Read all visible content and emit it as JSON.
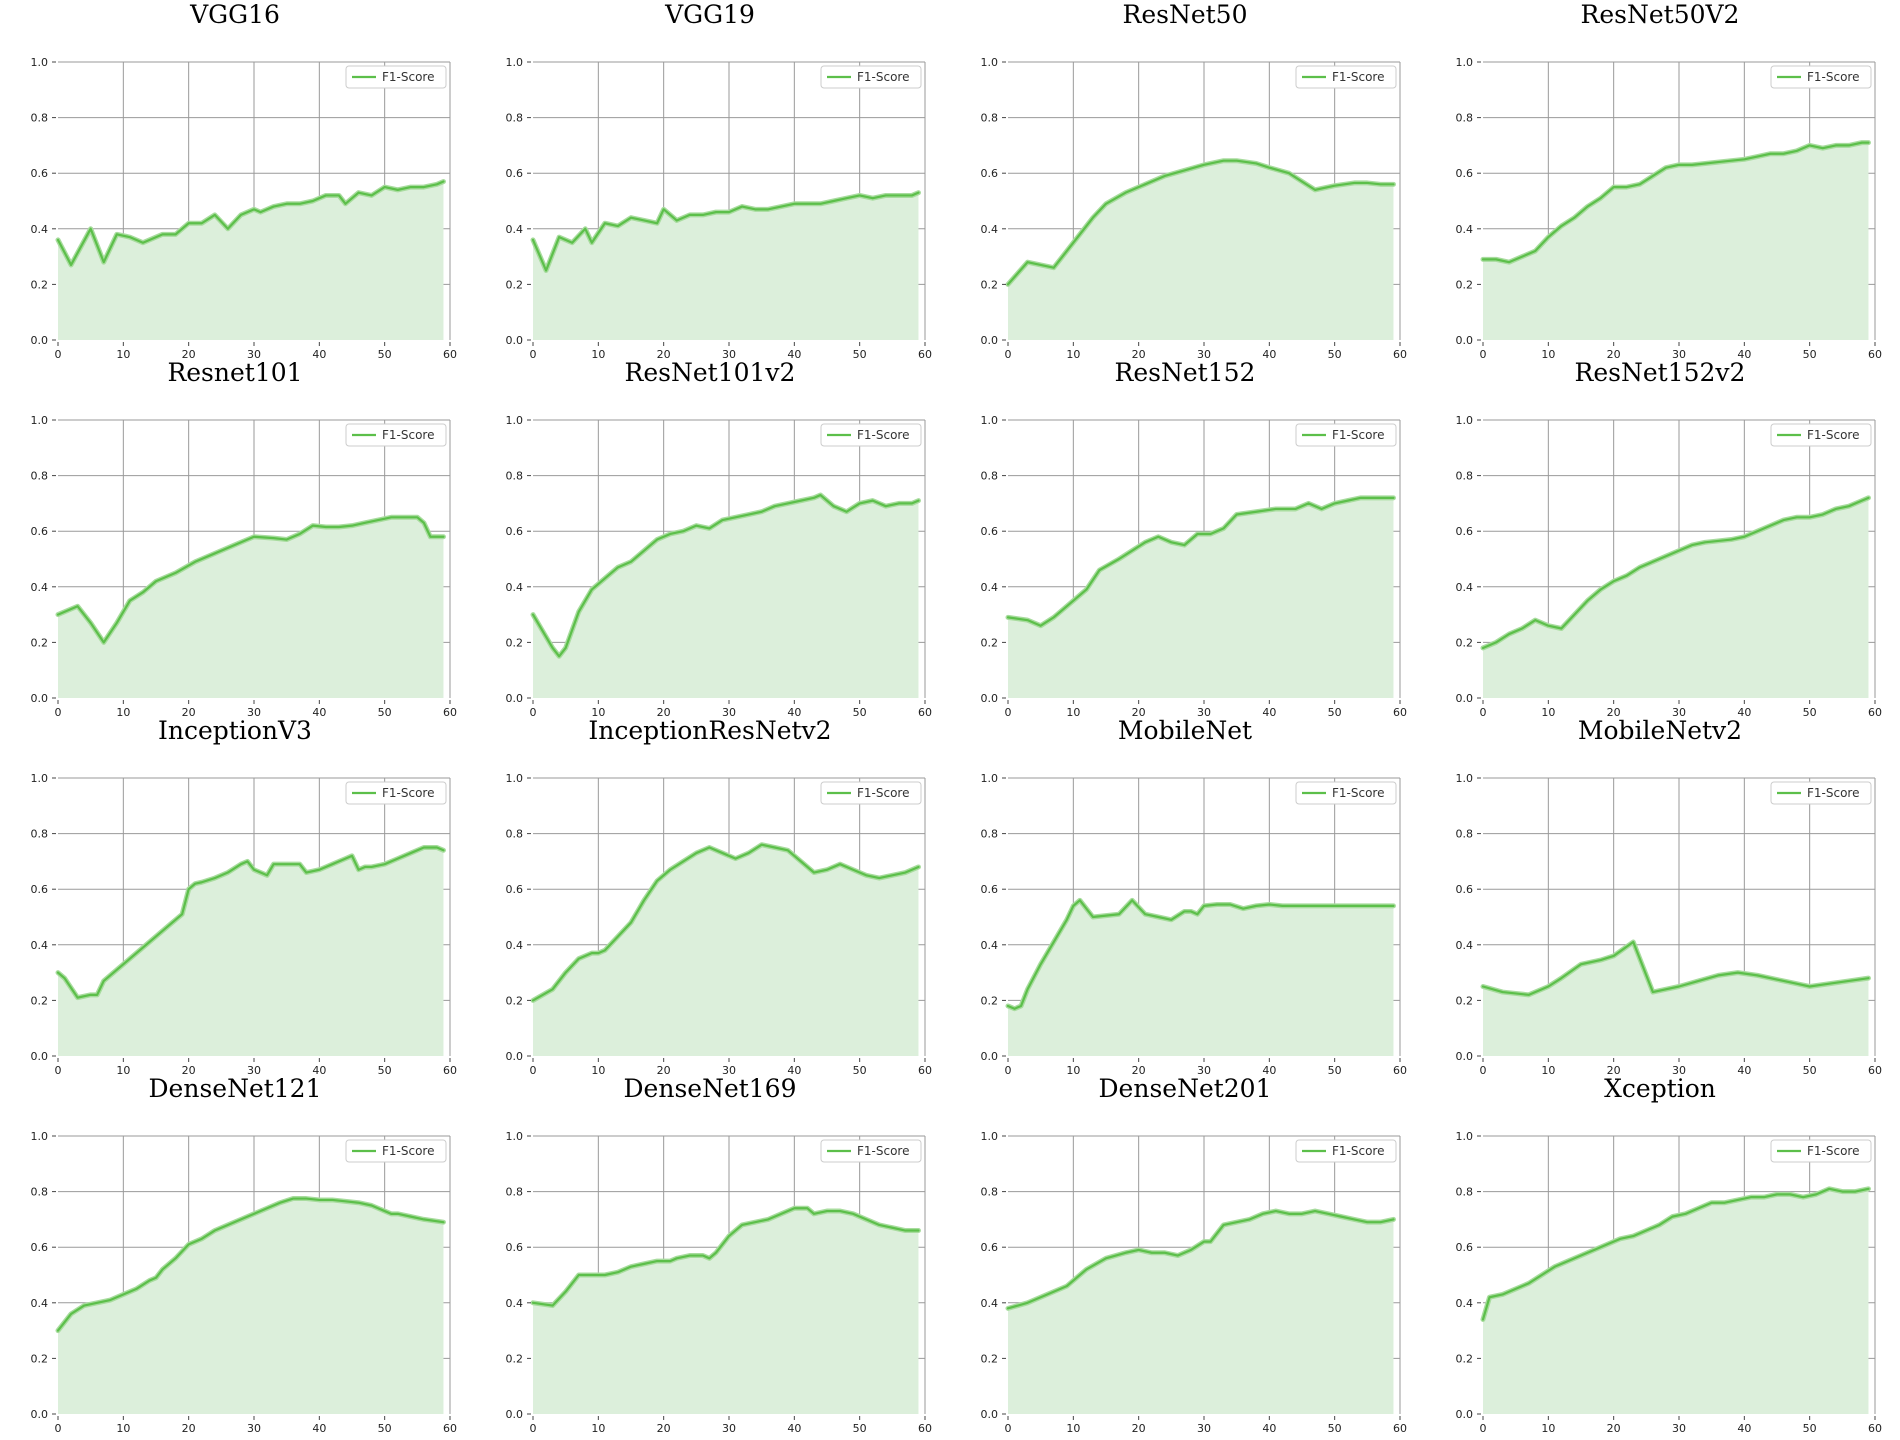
{
  "series_color": "#5cbf4a",
  "fill_color": "#dcefdb",
  "chart_data": [
    {
      "type": "area",
      "title": "VGG16",
      "legend": "F1-Score",
      "legend_loc": "top-right",
      "xlim": [
        0,
        60
      ],
      "ylim": [
        0,
        1
      ],
      "grid": true,
      "x": [
        0,
        2,
        5,
        7,
        9,
        11,
        13,
        16,
        18,
        20,
        22,
        24,
        26,
        28,
        30,
        31,
        33,
        35,
        37,
        39,
        41,
        43,
        44,
        46,
        48,
        50,
        52,
        54,
        56,
        58,
        59
      ],
      "y": [
        0.36,
        0.27,
        0.4,
        0.28,
        0.38,
        0.37,
        0.35,
        0.38,
        0.38,
        0.42,
        0.42,
        0.45,
        0.4,
        0.45,
        0.47,
        0.46,
        0.48,
        0.49,
        0.49,
        0.5,
        0.52,
        0.52,
        0.49,
        0.53,
        0.52,
        0.55,
        0.54,
        0.55,
        0.55,
        0.56,
        0.57
      ]
    },
    {
      "type": "area",
      "title": "VGG19",
      "legend": "F1-Score",
      "legend_loc": "top-right",
      "xlim": [
        0,
        60
      ],
      "ylim": [
        0,
        1
      ],
      "grid": true,
      "x": [
        0,
        2,
        4,
        6,
        8,
        9,
        11,
        13,
        15,
        17,
        19,
        20,
        22,
        24,
        26,
        28,
        30,
        32,
        34,
        36,
        38,
        40,
        42,
        44,
        46,
        48,
        50,
        52,
        54,
        56,
        58,
        59
      ],
      "y": [
        0.36,
        0.25,
        0.37,
        0.35,
        0.4,
        0.35,
        0.42,
        0.41,
        0.44,
        0.43,
        0.42,
        0.47,
        0.43,
        0.45,
        0.45,
        0.46,
        0.46,
        0.48,
        0.47,
        0.47,
        0.48,
        0.49,
        0.49,
        0.49,
        0.5,
        0.51,
        0.52,
        0.51,
        0.52,
        0.52,
        0.52,
        0.53
      ]
    },
    {
      "type": "area",
      "title": "ResNet50",
      "legend": "F1-Score",
      "legend_loc": "top-right",
      "xlim": [
        0,
        60
      ],
      "ylim": [
        0,
        1
      ],
      "grid": true,
      "x": [
        0,
        3,
        5,
        7,
        10,
        13,
        15,
        18,
        21,
        24,
        27,
        30,
        33,
        35,
        38,
        40,
        43,
        45,
        47,
        50,
        53,
        55,
        57,
        59
      ],
      "y": [
        0.2,
        0.28,
        0.27,
        0.26,
        0.35,
        0.44,
        0.49,
        0.53,
        0.56,
        0.59,
        0.61,
        0.63,
        0.645,
        0.645,
        0.635,
        0.62,
        0.6,
        0.57,
        0.54,
        0.555,
        0.565,
        0.565,
        0.56,
        0.56
      ]
    },
    {
      "type": "area",
      "title": "ResNet50V2",
      "legend": "F1-Score",
      "legend_loc": "top-right",
      "xlim": [
        0,
        60
      ],
      "ylim": [
        0,
        1
      ],
      "grid": true,
      "x": [
        0,
        2,
        4,
        6,
        8,
        10,
        12,
        14,
        16,
        18,
        20,
        22,
        24,
        26,
        28,
        30,
        32,
        34,
        36,
        38,
        40,
        42,
        44,
        46,
        48,
        50,
        52,
        54,
        56,
        58,
        59
      ],
      "y": [
        0.29,
        0.29,
        0.28,
        0.3,
        0.32,
        0.37,
        0.41,
        0.44,
        0.48,
        0.51,
        0.55,
        0.55,
        0.56,
        0.59,
        0.62,
        0.63,
        0.63,
        0.635,
        0.64,
        0.645,
        0.65,
        0.66,
        0.67,
        0.67,
        0.68,
        0.7,
        0.69,
        0.7,
        0.7,
        0.71,
        0.71
      ]
    },
    {
      "type": "area",
      "title": "Resnet101",
      "legend": "F1-Score",
      "legend_loc": "top-right",
      "xlim": [
        0,
        60
      ],
      "ylim": [
        0,
        1
      ],
      "grid": true,
      "x": [
        0,
        3,
        5,
        7,
        9,
        11,
        13,
        15,
        18,
        21,
        24,
        27,
        30,
        33,
        35,
        37,
        39,
        41,
        43,
        45,
        47,
        49,
        51,
        53,
        55,
        56,
        57,
        59
      ],
      "y": [
        0.3,
        0.33,
        0.27,
        0.2,
        0.27,
        0.35,
        0.38,
        0.42,
        0.45,
        0.49,
        0.52,
        0.55,
        0.58,
        0.575,
        0.57,
        0.59,
        0.62,
        0.615,
        0.615,
        0.62,
        0.63,
        0.64,
        0.65,
        0.65,
        0.65,
        0.63,
        0.58,
        0.58
      ]
    },
    {
      "type": "area",
      "title": "ResNet101v2",
      "legend": "F1-Score",
      "legend_loc": "top-right",
      "xlim": [
        0,
        60
      ],
      "ylim": [
        0,
        1
      ],
      "grid": true,
      "x": [
        0,
        2,
        3,
        4,
        5,
        7,
        9,
        11,
        13,
        15,
        17,
        19,
        21,
        23,
        25,
        27,
        29,
        31,
        33,
        35,
        37,
        39,
        41,
        43,
        44,
        46,
        48,
        50,
        52,
        54,
        56,
        58,
        59
      ],
      "y": [
        0.3,
        0.22,
        0.18,
        0.15,
        0.18,
        0.31,
        0.39,
        0.43,
        0.47,
        0.49,
        0.53,
        0.57,
        0.59,
        0.6,
        0.62,
        0.61,
        0.64,
        0.65,
        0.66,
        0.67,
        0.69,
        0.7,
        0.71,
        0.72,
        0.73,
        0.69,
        0.67,
        0.7,
        0.71,
        0.69,
        0.7,
        0.7,
        0.71
      ]
    },
    {
      "type": "area",
      "title": "ResNet152",
      "legend": "F1-Score",
      "legend_loc": "top-right",
      "xlim": [
        0,
        60
      ],
      "ylim": [
        0,
        1
      ],
      "grid": true,
      "x": [
        0,
        3,
        5,
        7,
        10,
        12,
        14,
        17,
        19,
        21,
        23,
        25,
        27,
        29,
        31,
        33,
        35,
        38,
        41,
        44,
        46,
        48,
        50,
        52,
        54,
        56,
        59
      ],
      "y": [
        0.29,
        0.28,
        0.26,
        0.29,
        0.35,
        0.39,
        0.46,
        0.5,
        0.53,
        0.56,
        0.58,
        0.56,
        0.55,
        0.59,
        0.59,
        0.61,
        0.66,
        0.67,
        0.68,
        0.68,
        0.7,
        0.68,
        0.7,
        0.71,
        0.72,
        0.72,
        0.72
      ]
    },
    {
      "type": "area",
      "title": "ResNet152v2",
      "legend": "F1-Score",
      "legend_loc": "top-right",
      "xlim": [
        0,
        60
      ],
      "ylim": [
        0,
        1
      ],
      "grid": true,
      "x": [
        0,
        2,
        4,
        6,
        8,
        10,
        12,
        14,
        16,
        18,
        20,
        22,
        24,
        26,
        28,
        30,
        32,
        34,
        36,
        38,
        40,
        42,
        44,
        46,
        48,
        50,
        52,
        54,
        56,
        58,
        59
      ],
      "y": [
        0.18,
        0.2,
        0.23,
        0.25,
        0.28,
        0.26,
        0.25,
        0.3,
        0.35,
        0.39,
        0.42,
        0.44,
        0.47,
        0.49,
        0.51,
        0.53,
        0.55,
        0.56,
        0.565,
        0.57,
        0.58,
        0.6,
        0.62,
        0.64,
        0.65,
        0.65,
        0.66,
        0.68,
        0.69,
        0.71,
        0.72
      ]
    },
    {
      "type": "area",
      "title": "InceptionV3",
      "legend": "F1-Score",
      "legend_loc": "top-right",
      "xlim": [
        0,
        60
      ],
      "ylim": [
        0,
        1
      ],
      "grid": true,
      "x": [
        0,
        1,
        3,
        5,
        6,
        7,
        9,
        11,
        13,
        15,
        17,
        19,
        20,
        21,
        22,
        24,
        26,
        28,
        29,
        30,
        31,
        32,
        33,
        35,
        37,
        38,
        40,
        42,
        44,
        45,
        46,
        47,
        48,
        50,
        52,
        54,
        56,
        58,
        59
      ],
      "y": [
        0.3,
        0.28,
        0.21,
        0.22,
        0.22,
        0.27,
        0.31,
        0.35,
        0.39,
        0.43,
        0.47,
        0.51,
        0.6,
        0.62,
        0.625,
        0.64,
        0.66,
        0.69,
        0.7,
        0.67,
        0.66,
        0.65,
        0.69,
        0.69,
        0.69,
        0.66,
        0.67,
        0.69,
        0.71,
        0.72,
        0.67,
        0.68,
        0.68,
        0.69,
        0.71,
        0.73,
        0.75,
        0.75,
        0.74
      ]
    },
    {
      "type": "area",
      "title": "InceptionResNetv2",
      "legend": "F1-Score",
      "legend_loc": "top-right",
      "xlim": [
        0,
        60
      ],
      "ylim": [
        0,
        1
      ],
      "grid": true,
      "x": [
        0,
        3,
        5,
        7,
        9,
        10,
        11,
        13,
        15,
        17,
        19,
        21,
        23,
        25,
        27,
        29,
        31,
        33,
        35,
        37,
        39,
        41,
        43,
        45,
        47,
        49,
        51,
        53,
        55,
        57,
        59
      ],
      "y": [
        0.2,
        0.24,
        0.3,
        0.35,
        0.37,
        0.37,
        0.38,
        0.43,
        0.48,
        0.56,
        0.63,
        0.67,
        0.7,
        0.73,
        0.75,
        0.73,
        0.71,
        0.73,
        0.76,
        0.75,
        0.74,
        0.7,
        0.66,
        0.67,
        0.69,
        0.67,
        0.65,
        0.64,
        0.65,
        0.66,
        0.68
      ]
    },
    {
      "type": "area",
      "title": "MobileNet",
      "legend": "F1-Score",
      "legend_loc": "top-right",
      "xlim": [
        0,
        60
      ],
      "ylim": [
        0,
        1
      ],
      "grid": true,
      "x": [
        0,
        1,
        2,
        3,
        5,
        7,
        9,
        10,
        11,
        13,
        15,
        17,
        19,
        21,
        23,
        25,
        27,
        28,
        29,
        30,
        32,
        34,
        36,
        38,
        40,
        42,
        44,
        46,
        48,
        50,
        52,
        54,
        56,
        58,
        59
      ],
      "y": [
        0.18,
        0.17,
        0.18,
        0.24,
        0.33,
        0.41,
        0.49,
        0.54,
        0.56,
        0.5,
        0.505,
        0.51,
        0.56,
        0.51,
        0.5,
        0.49,
        0.52,
        0.52,
        0.51,
        0.54,
        0.545,
        0.545,
        0.53,
        0.54,
        0.545,
        0.54,
        0.54,
        0.54,
        0.54,
        0.54,
        0.54,
        0.54,
        0.54,
        0.54,
        0.54
      ]
    },
    {
      "type": "area",
      "title": "MobileNetv2",
      "legend": "F1-Score",
      "legend_loc": "top-right",
      "xlim": [
        0,
        60
      ],
      "ylim": [
        0,
        1
      ],
      "grid": true,
      "x": [
        0,
        3,
        5,
        7,
        10,
        12,
        15,
        18,
        20,
        23,
        26,
        30,
        33,
        36,
        39,
        42,
        45,
        48,
        50,
        53,
        56,
        59
      ],
      "y": [
        0.25,
        0.23,
        0.225,
        0.22,
        0.25,
        0.28,
        0.33,
        0.345,
        0.36,
        0.41,
        0.23,
        0.25,
        0.27,
        0.29,
        0.3,
        0.29,
        0.275,
        0.26,
        0.25,
        0.26,
        0.27,
        0.28
      ]
    },
    {
      "type": "area",
      "title": "DenseNet121",
      "legend": "F1-Score",
      "legend_loc": "top-right",
      "xlim": [
        0,
        60
      ],
      "ylim": [
        0,
        1
      ],
      "grid": true,
      "x": [
        0,
        2,
        4,
        6,
        8,
        10,
        12,
        14,
        15,
        16,
        18,
        20,
        22,
        24,
        26,
        28,
        30,
        32,
        34,
        36,
        38,
        40,
        42,
        44,
        46,
        48,
        50,
        51,
        52,
        54,
        56,
        59
      ],
      "y": [
        0.3,
        0.36,
        0.39,
        0.4,
        0.41,
        0.43,
        0.45,
        0.48,
        0.49,
        0.52,
        0.56,
        0.61,
        0.63,
        0.66,
        0.68,
        0.7,
        0.72,
        0.74,
        0.76,
        0.775,
        0.775,
        0.77,
        0.77,
        0.765,
        0.76,
        0.75,
        0.73,
        0.72,
        0.72,
        0.71,
        0.7,
        0.69
      ]
    },
    {
      "type": "area",
      "title": "DenseNet169",
      "legend": "F1-Score",
      "legend_loc": "top-right",
      "xlim": [
        0,
        60
      ],
      "ylim": [
        0,
        1
      ],
      "grid": true,
      "x": [
        0,
        3,
        5,
        7,
        9,
        11,
        13,
        15,
        17,
        19,
        21,
        22,
        24,
        26,
        27,
        28,
        30,
        32,
        34,
        36,
        38,
        40,
        42,
        43,
        45,
        47,
        49,
        51,
        53,
        55,
        57,
        59
      ],
      "y": [
        0.4,
        0.39,
        0.44,
        0.5,
        0.5,
        0.5,
        0.51,
        0.53,
        0.54,
        0.55,
        0.55,
        0.56,
        0.57,
        0.57,
        0.56,
        0.58,
        0.64,
        0.68,
        0.69,
        0.7,
        0.72,
        0.74,
        0.74,
        0.72,
        0.73,
        0.73,
        0.72,
        0.7,
        0.68,
        0.67,
        0.66,
        0.66
      ]
    },
    {
      "type": "area",
      "title": "DenseNet201",
      "legend": "F1-Score",
      "legend_loc": "top-right",
      "xlim": [
        0,
        60
      ],
      "ylim": [
        0,
        1
      ],
      "grid": true,
      "x": [
        0,
        3,
        6,
        9,
        12,
        15,
        18,
        20,
        22,
        24,
        26,
        28,
        30,
        31,
        33,
        35,
        37,
        39,
        41,
        43,
        45,
        47,
        49,
        51,
        53,
        55,
        57,
        59
      ],
      "y": [
        0.38,
        0.4,
        0.43,
        0.46,
        0.52,
        0.56,
        0.58,
        0.59,
        0.58,
        0.58,
        0.57,
        0.59,
        0.62,
        0.62,
        0.68,
        0.69,
        0.7,
        0.72,
        0.73,
        0.72,
        0.72,
        0.73,
        0.72,
        0.71,
        0.7,
        0.69,
        0.69,
        0.7
      ]
    },
    {
      "type": "area",
      "title": "Xception",
      "legend": "F1-Score",
      "legend_loc": "top-right",
      "xlim": [
        0,
        60
      ],
      "ylim": [
        0,
        1
      ],
      "grid": true,
      "x": [
        0,
        1,
        3,
        5,
        7,
        9,
        11,
        13,
        15,
        17,
        19,
        21,
        23,
        25,
        27,
        29,
        31,
        33,
        35,
        37,
        39,
        41,
        43,
        45,
        47,
        49,
        51,
        53,
        55,
        57,
        59
      ],
      "y": [
        0.34,
        0.42,
        0.43,
        0.45,
        0.47,
        0.5,
        0.53,
        0.55,
        0.57,
        0.59,
        0.61,
        0.63,
        0.64,
        0.66,
        0.68,
        0.71,
        0.72,
        0.74,
        0.76,
        0.76,
        0.77,
        0.78,
        0.78,
        0.79,
        0.79,
        0.78,
        0.79,
        0.81,
        0.8,
        0.8,
        0.81
      ]
    }
  ]
}
